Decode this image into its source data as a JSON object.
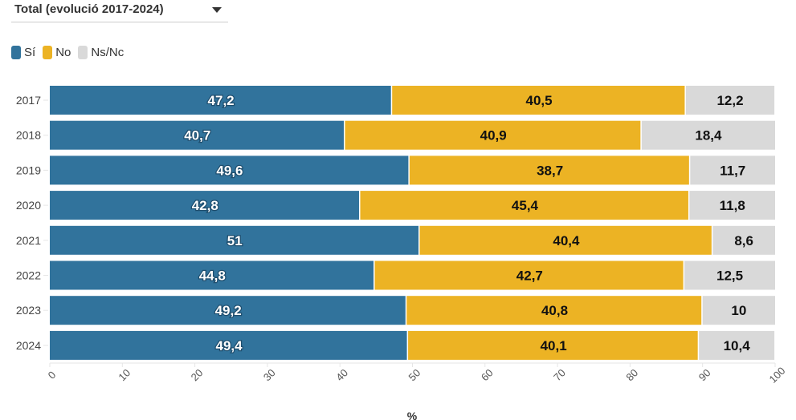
{
  "dropdown": {
    "selected": "Total (evolució 2017-2024)",
    "icon": "caret-down-icon"
  },
  "legend": [
    {
      "label": "Sí",
      "color": "#31739c"
    },
    {
      "label": "No",
      "color": "#ecb324"
    },
    {
      "label": "Ns/Nc",
      "color": "#d9d9d9"
    }
  ],
  "chart_data": {
    "type": "bar",
    "orientation": "horizontal",
    "stacked": true,
    "title": "",
    "xlabel": "%",
    "ylabel": "",
    "xlim": [
      0,
      100
    ],
    "xticks": [
      0,
      10,
      20,
      30,
      40,
      50,
      60,
      70,
      80,
      90,
      100
    ],
    "categories": [
      "2017",
      "2018",
      "2019",
      "2020",
      "2021",
      "2022",
      "2023",
      "2024"
    ],
    "series": [
      {
        "name": "Sí",
        "color": "#31739c",
        "label_color": "#ffffff",
        "values": [
          47.2,
          40.7,
          49.6,
          42.8,
          51,
          44.8,
          49.2,
          49.4
        ],
        "labels": [
          "47,2",
          "40,7",
          "49,6",
          "42,8",
          "51",
          "44,8",
          "49,2",
          "49,4"
        ]
      },
      {
        "name": "No",
        "color": "#ecb324",
        "label_color": "#111111",
        "values": [
          40.5,
          40.9,
          38.7,
          45.4,
          40.4,
          42.7,
          40.8,
          40.1
        ],
        "labels": [
          "40,5",
          "40,9",
          "38,7",
          "45,4",
          "40,4",
          "42,7",
          "40,8",
          "40,1"
        ]
      },
      {
        "name": "Ns/Nc",
        "color": "#d9d9d9",
        "label_color": "#111111",
        "values": [
          12.2,
          18.4,
          11.7,
          11.8,
          8.6,
          12.5,
          10,
          10.4
        ],
        "labels": [
          "12,2",
          "18,4",
          "11,7",
          "11,8",
          "8,6",
          "12,5",
          "10",
          "10,4"
        ]
      }
    ],
    "grid": false,
    "legend_position": "top-left"
  }
}
